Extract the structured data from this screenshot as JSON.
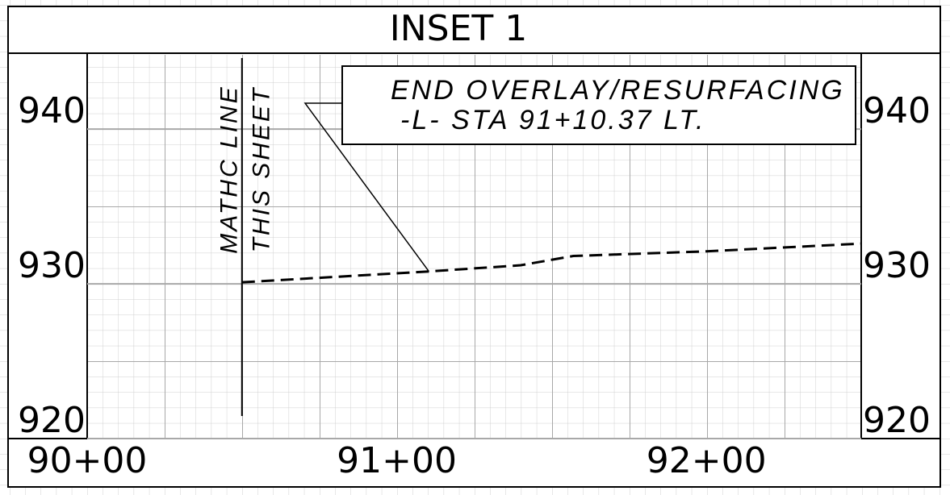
{
  "chart_data": {
    "type": "line",
    "title": "INSET 1",
    "xlim": [
      9000,
      9250
    ],
    "xticks": [
      {
        "value": 9000,
        "label": "90+00"
      },
      {
        "value": 9100,
        "label": "91+00"
      },
      {
        "value": 9200,
        "label": "92+00"
      }
    ],
    "ylim": [
      920,
      944.8
    ],
    "yticks": [
      920,
      930,
      940
    ],
    "grid": true,
    "series": [
      {
        "color": "#000000",
        "dashed": true,
        "x": [
          9050,
          9110.37,
          9140,
          9157,
          9200,
          9250
        ],
        "values": [
          930.1,
          930.8,
          931.2,
          931.8,
          932.1,
          932.6
        ]
      }
    ],
    "match_line": {
      "x": 9050,
      "labels": [
        "MATHC LINE",
        "THIS SHEET"
      ]
    },
    "callout": {
      "x": 9110.37,
      "y": 930.8,
      "lines": [
        "END OVERLAY/RESURFACING",
        "-L- STA 91+10.37 LT."
      ]
    }
  }
}
